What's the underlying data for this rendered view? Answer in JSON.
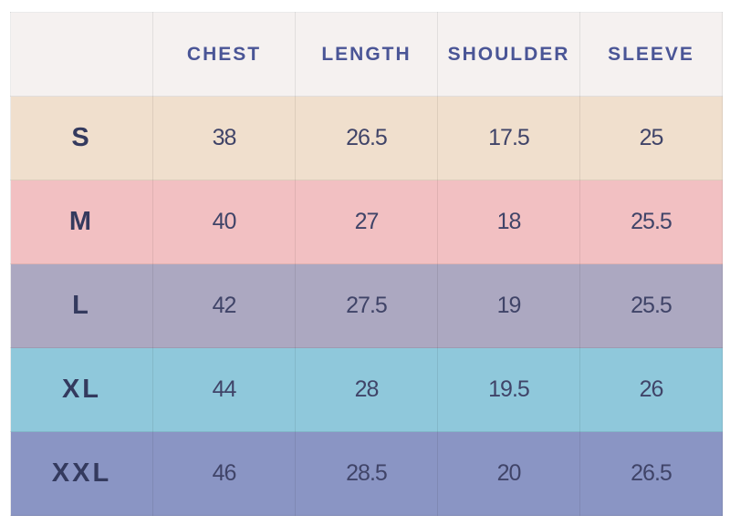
{
  "table": {
    "header": [
      "CHEST",
      "LENGTH",
      "SHOULDER",
      "SLEEVE"
    ],
    "rows": [
      [
        "S",
        "38",
        "26.5",
        "17.5",
        "25"
      ],
      [
        "M",
        "40",
        "27",
        "18",
        "25.5"
      ],
      [
        "L",
        "42",
        "27.5",
        "19",
        "25.5"
      ],
      [
        "XL",
        "44",
        "28",
        "19.5",
        "26"
      ],
      [
        "XXL",
        "46",
        "28.5",
        "20",
        "26.5"
      ]
    ]
  }
}
